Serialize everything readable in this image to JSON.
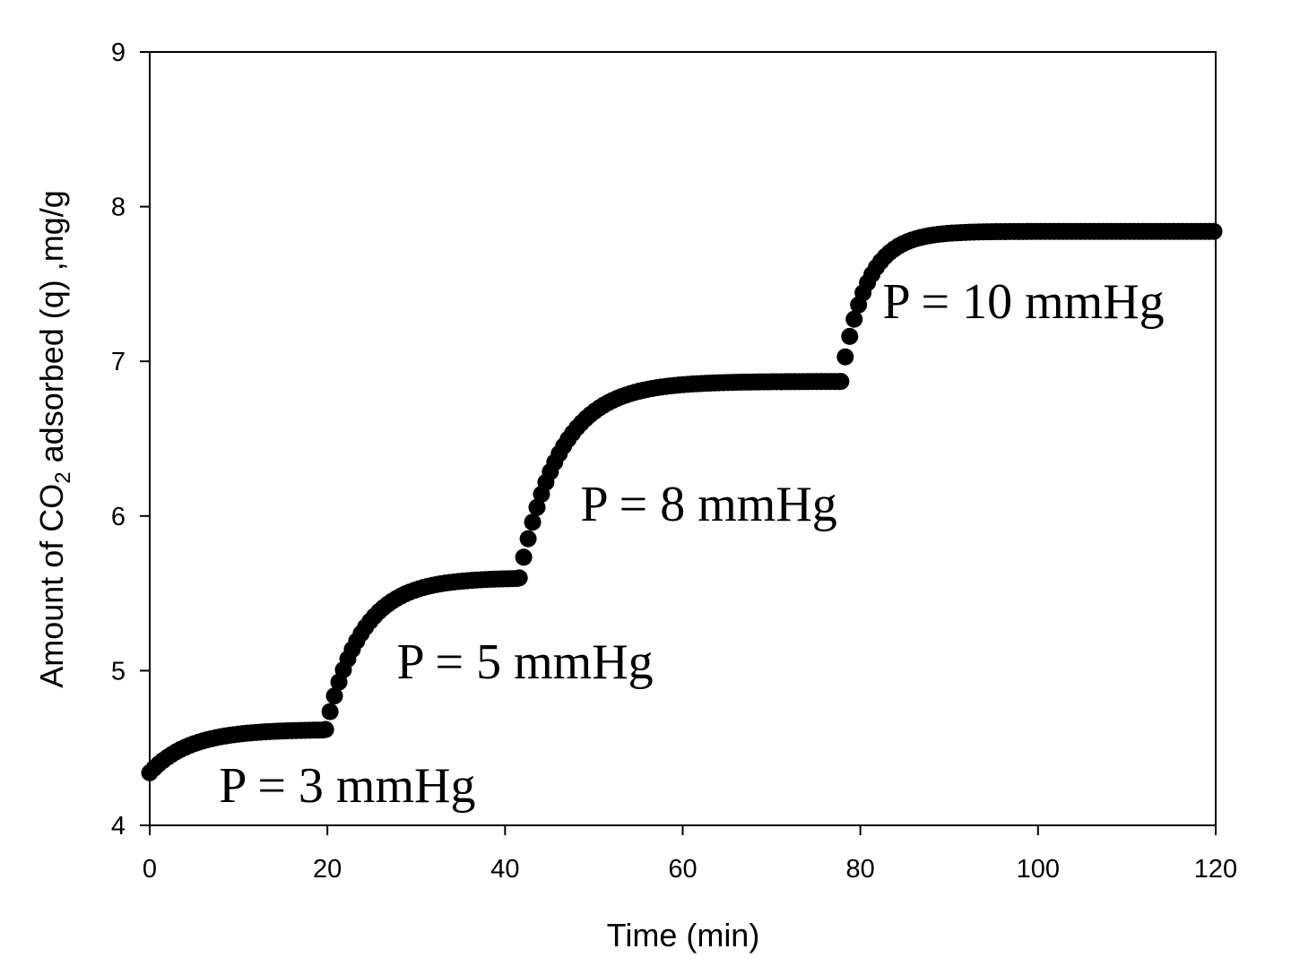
{
  "chart_data": {
    "type": "scatter",
    "title": "",
    "xlabel": "Time (min)",
    "ylabel": {
      "prefix": "Amount of CO",
      "subscript": "2",
      "suffix": " adsorbed (q) ,mg/g"
    },
    "xlim": [
      0,
      120
    ],
    "ylim": [
      4,
      9
    ],
    "xticks": [
      0,
      20,
      40,
      60,
      80,
      100,
      120
    ],
    "yticks": [
      4,
      5,
      6,
      7,
      8,
      9
    ],
    "grid": false,
    "legend": "none",
    "marker_color": "#000000",
    "segments": [
      {
        "t_start": 0,
        "t_end": 19.8,
        "q_start": 4.34,
        "q_end": 4.62,
        "tau": 4.5
      },
      {
        "t_start": 19.8,
        "t_end": 41.6,
        "q_start": 4.62,
        "q_end": 5.6,
        "tau": 4.0
      },
      {
        "t_start": 41.6,
        "t_end": 77.8,
        "q_start": 5.6,
        "q_end": 6.87,
        "tau": 4.5
      },
      {
        "t_start": 77.8,
        "t_end": 120,
        "q_start": 6.87,
        "q_end": 7.84,
        "tau": 2.8
      }
    ],
    "sample_interval_min": 0.5,
    "annotations": [
      {
        "text": "P = 3 mmHg",
        "x": 7.8,
        "y": 4.15
      },
      {
        "text": "P = 5 mmHg",
        "x": 27.8,
        "y": 4.95
      },
      {
        "text": "P = 8 mmHg",
        "x": 48.5,
        "y": 5.97
      },
      {
        "text": "P = 10 mmHg",
        "x": 82.5,
        "y": 7.28
      }
    ]
  }
}
